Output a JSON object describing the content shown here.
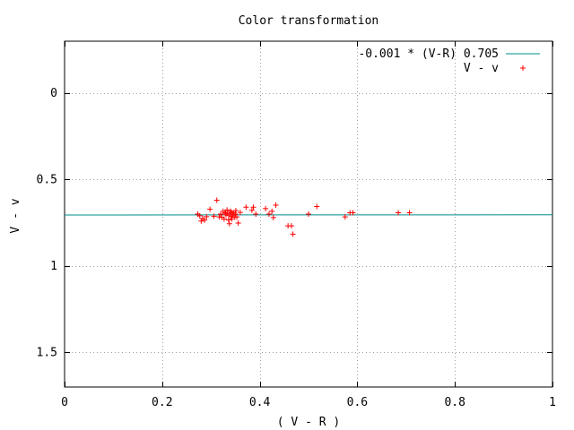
{
  "chart_data": {
    "type": "scatter",
    "title": "Color transformation",
    "xlabel": "( V - R )",
    "ylabel": "V - v",
    "xlim": [
      0,
      1
    ],
    "ylim": [
      1.7,
      -0.3
    ],
    "y_axis_inverted": true,
    "grid": true,
    "legend_position": "top-right",
    "x_ticks": [
      {
        "value": 0,
        "label": "0"
      },
      {
        "value": 0.2,
        "label": "0.2"
      },
      {
        "value": 0.4,
        "label": "0.4"
      },
      {
        "value": 0.6,
        "label": "0.6"
      },
      {
        "value": 0.8,
        "label": "0.8"
      },
      {
        "value": 1,
        "label": "1"
      }
    ],
    "y_ticks": [
      {
        "value": 0,
        "label": "0"
      },
      {
        "value": 0.5,
        "label": "0.5"
      },
      {
        "value": 1,
        "label": "1"
      },
      {
        "value": 1.5,
        "label": "1.5"
      }
    ],
    "series": [
      {
        "name": "-0.001 * (V-R) 0.705",
        "kind": "line",
        "color": "#008b8b",
        "x": [
          0,
          1
        ],
        "y": [
          0.705,
          0.704
        ]
      },
      {
        "name": "V - v",
        "kind": "points",
        "marker": "+",
        "color": "#ff0000",
        "x": [
          0.273,
          0.277,
          0.28,
          0.283,
          0.287,
          0.291,
          0.298,
          0.306,
          0.312,
          0.317,
          0.32,
          0.322,
          0.325,
          0.327,
          0.329,
          0.331,
          0.333,
          0.334,
          0.336,
          0.338,
          0.34,
          0.341,
          0.343,
          0.345,
          0.347,
          0.349,
          0.351,
          0.353,
          0.356,
          0.372,
          0.384,
          0.387,
          0.392,
          0.412,
          0.419,
          0.425,
          0.428,
          0.433,
          0.458,
          0.465,
          0.468,
          0.5,
          0.517,
          0.575,
          0.585,
          0.591,
          0.684,
          0.707,
          0.33,
          0.337,
          0.342,
          0.346,
          0.35,
          0.36
        ],
        "y": [
          0.7,
          0.71,
          0.74,
          0.725,
          0.735,
          0.715,
          0.672,
          0.712,
          0.62,
          0.716,
          0.7,
          0.718,
          0.684,
          0.728,
          0.692,
          0.704,
          0.676,
          0.696,
          0.734,
          0.756,
          0.683,
          0.712,
          0.728,
          0.7,
          0.692,
          0.718,
          0.68,
          0.716,
          0.752,
          0.66,
          0.678,
          0.66,
          0.7,
          0.668,
          0.7,
          0.684,
          0.72,
          0.648,
          0.768,
          0.768,
          0.816,
          0.7,
          0.656,
          0.716,
          0.692,
          0.692,
          0.692,
          0.692,
          0.695,
          0.706,
          0.69,
          0.706,
          0.7,
          0.69
        ]
      }
    ]
  }
}
